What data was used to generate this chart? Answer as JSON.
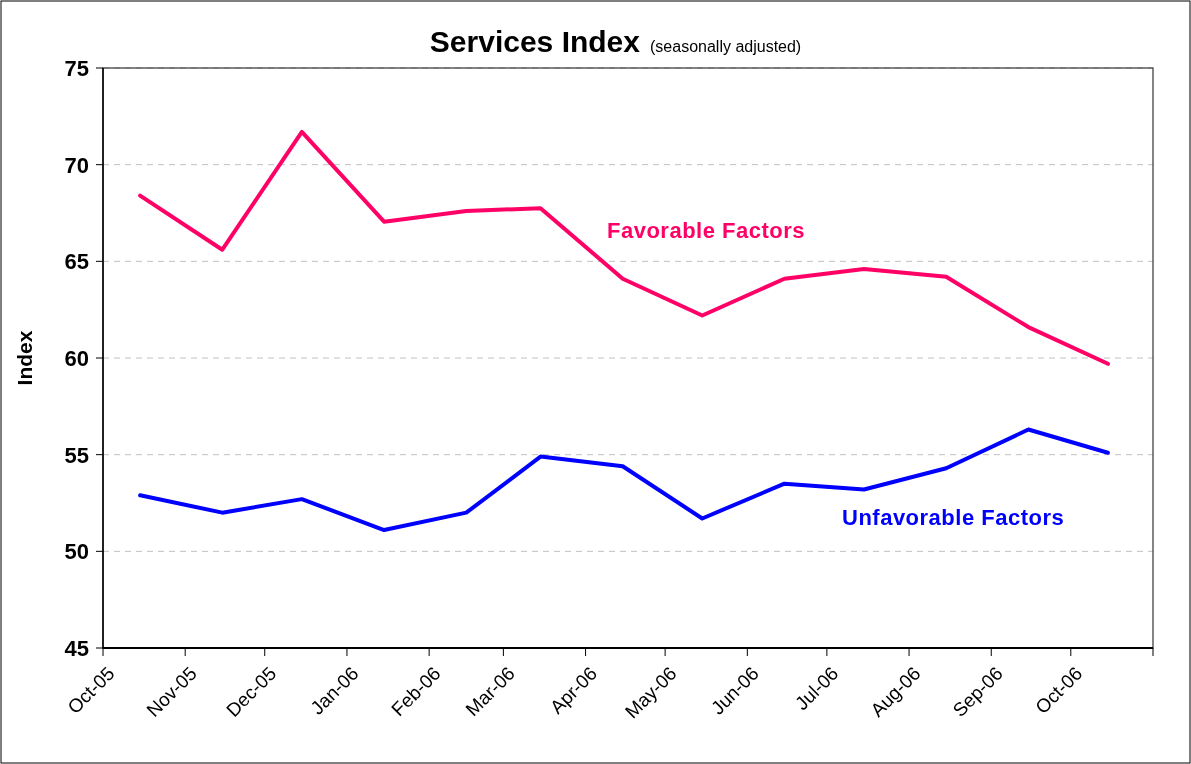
{
  "chart_data": {
    "type": "line",
    "title": "Services Index",
    "subtitle": "(seasonally adjusted)",
    "ylabel": "Index",
    "x": [
      "2005-10-15",
      "2005-11-15",
      "2005-12-15",
      "2006-01-15",
      "2006-02-15",
      "2006-03-15",
      "2006-04-15",
      "2006-05-15",
      "2006-06-15",
      "2006-07-15",
      "2006-08-15",
      "2006-09-15",
      "2006-10-15"
    ],
    "series": [
      {
        "name": "Favorable Factors",
        "color": "#ff0066",
        "values": [
          68.4,
          65.6,
          71.7,
          67.05,
          67.6,
          67.75,
          64.1,
          62.2,
          64.1,
          64.6,
          64.2,
          61.6,
          59.7
        ]
      },
      {
        "name": "Unfavorable Factors",
        "color": "#0000ff",
        "values": [
          52.9,
          52.0,
          52.7,
          51.1,
          52.0,
          54.9,
          54.4,
          51.7,
          53.5,
          53.2,
          54.3,
          56.3,
          55.1
        ]
      }
    ],
    "xlim": [
      "2005-10-01",
      "2006-11-01"
    ],
    "xticks": [
      {
        "value": "2005-10-01",
        "label": "Oct-05"
      },
      {
        "value": "2005-11-01",
        "label": "Nov-05"
      },
      {
        "value": "2005-12-01",
        "label": "Dec-05"
      },
      {
        "value": "2006-01-01",
        "label": "Jan-06"
      },
      {
        "value": "2006-02-01",
        "label": "Feb-06"
      },
      {
        "value": "2006-03-01",
        "label": "Mar-06"
      },
      {
        "value": "2006-04-01",
        "label": "Apr-06"
      },
      {
        "value": "2006-05-01",
        "label": "May-06"
      },
      {
        "value": "2006-06-01",
        "label": "Jun-06"
      },
      {
        "value": "2006-07-01",
        "label": "Jul-06"
      },
      {
        "value": "2006-08-01",
        "label": "Aug-06"
      },
      {
        "value": "2006-09-01",
        "label": "Sep-06"
      },
      {
        "value": "2006-10-01",
        "label": "Oct-06"
      },
      {
        "value": "2006-11-01",
        "label": null
      }
    ],
    "ylim": [
      45,
      75
    ],
    "yticks": [
      45,
      50,
      55,
      60,
      65,
      70,
      75
    ],
    "grid": "y",
    "legend": false,
    "marker": "none",
    "line_style": "solid"
  }
}
